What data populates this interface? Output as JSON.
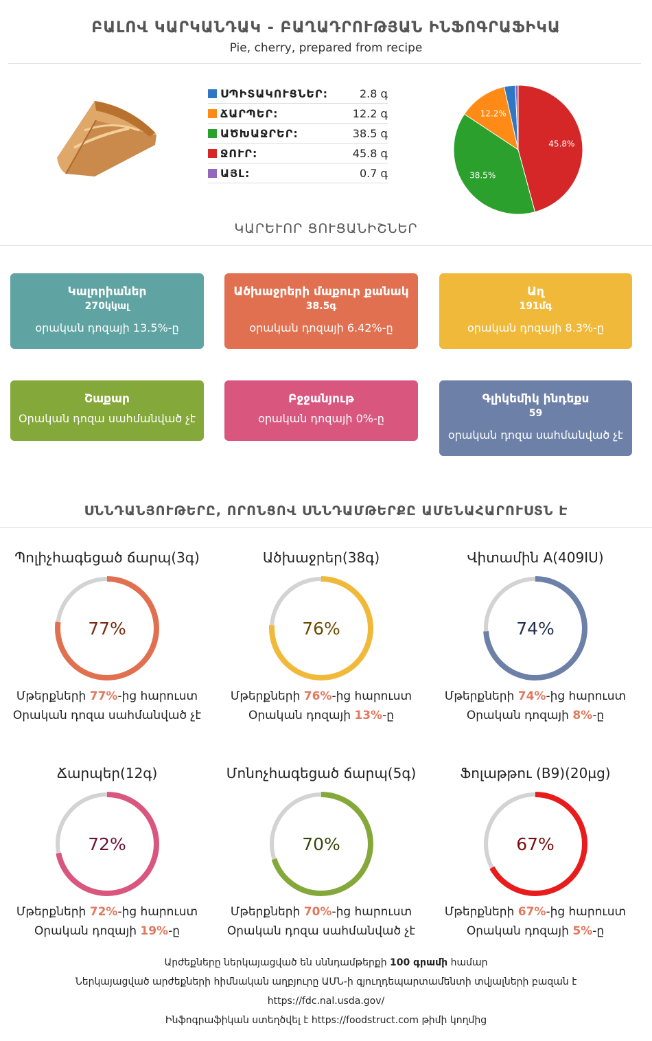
{
  "header": {
    "title": "ԲԱԼՈՎ ԿԱՐԿԱՆԴԱԿ - ԲԱՂԱԴՐՈՒԹՅԱՆ ԻՆՖՈԳՐԱՖԻԿԱ",
    "subtitle": "Pie, cherry, prepared from recipe"
  },
  "macros": [
    {
      "label": "ՍՊԻՏԱԿՈՒՑՆԵՐ:",
      "value": "2.8 գ",
      "color": "#2f77c4"
    },
    {
      "label": "ՃԱՐՊԵՐ:",
      "value": "12.2 գ",
      "color": "#ff8a16"
    },
    {
      "label": "ԱԾԽԱՋՐԵՐ:",
      "value": "38.5 գ",
      "color": "#2ca02c"
    },
    {
      "label": "ՋՈՒՐ:",
      "value": "45.8 գ",
      "color": "#d62728"
    },
    {
      "label": "ԱՅԼ:",
      "value": "0.7 գ",
      "color": "#9467bd"
    }
  ],
  "chart_data": {
    "type": "pie",
    "categories": [
      "ՍՊԻՏԱԿՈՒՑՆԵՐ",
      "ՃԱՐՊԵՐ",
      "ԱԾԽԱՋՐԵՐ",
      "ՋՈՒՐ",
      "ԱՅԼ"
    ],
    "values": [
      2.8,
      12.2,
      38.5,
      45.8,
      0.7
    ],
    "colors": [
      "#2f77c4",
      "#ff8a16",
      "#2ca02c",
      "#d62728",
      "#9467bd"
    ],
    "order": [
      3,
      2,
      1,
      0,
      4
    ],
    "labels": [
      "45.8%",
      "38.5%",
      "12.2%"
    ]
  },
  "sections": {
    "key_facts": "ԿԱՐԵՒՈՐ ՑՈՒՑԱՆԻՇՆԵՐ",
    "nutrients": "ՍՆՆԴԱՆՅՈՒԹԵՐԸ, ՈՐՈՆՑՈՎ ՍՆՆԴԱՄԹԵՐՔԸ ԱՄԵՆԱՀԱՐՈՒՍՏՆ Է"
  },
  "cards": [
    {
      "title": "Կալորիաներ",
      "value": "270կկալ",
      "sub": "օրական դոզայի 13.5%-ը",
      "color": "#5fa3a3"
    },
    {
      "title": "Ածխաջրերի մաքուր քանակ",
      "value": "38.5գ",
      "sub": "օրական դոզայի 6.42%-ը",
      "color": "#e07050"
    },
    {
      "title": "Աղ",
      "value": "191մգ",
      "sub": "օրական դոզայի 8.3%-ը",
      "color": "#f0b93a"
    },
    {
      "title": "Շաքար",
      "value": "",
      "sub": "Օրական դոզա սահմանված չէ",
      "color": "#85a83a"
    },
    {
      "title": "Բջջանյութ",
      "value": "",
      "sub": "օրական դոզայի 0%-ը",
      "color": "#d9577f"
    },
    {
      "title": "Գլիկեմիկ ինդեքս",
      "value": "59",
      "sub": "օրական դոզա սահմանված չէ",
      "color": "#6c80a8"
    }
  ],
  "rings": [
    {
      "title": "Պոլիչհագեցած ճարպ(3գ)",
      "percent": 77,
      "pct_label": "77%",
      "color": "#e07050",
      "text_color": "#7a2a10",
      "line1_pre": "Մթերքների ",
      "line1_hl": "77%",
      "line1_post": "-ից հարուստ",
      "line2_pre": "Օրական դոզա սահմանված չէ",
      "line2_hl": "",
      "line2_post": ""
    },
    {
      "title": "Ածխաջրեր(38գ)",
      "percent": 76,
      "pct_label": "76%",
      "color": "#f0b93a",
      "text_color": "#6b4a00",
      "line1_pre": "Մթերքների ",
      "line1_hl": "76%",
      "line1_post": "-ից հարուստ",
      "line2_pre": "Օրական դոզայի ",
      "line2_hl": "13%",
      "line2_post": "-ը"
    },
    {
      "title": "Վիտամին A(409IU)",
      "percent": 74,
      "pct_label": "74%",
      "color": "#6c80a8",
      "text_color": "#22304d",
      "line1_pre": "Մթերքների ",
      "line1_hl": "74%",
      "line1_post": "-ից հարուստ",
      "line2_pre": "Օրական դոզայի ",
      "line2_hl": "8%",
      "line2_post": "-ը"
    },
    {
      "title": "Ճարպեր(12գ)",
      "percent": 72,
      "pct_label": "72%",
      "color": "#d9577f",
      "text_color": "#6e1233",
      "line1_pre": "Մթերքների ",
      "line1_hl": "72%",
      "line1_post": "-ից հարուստ",
      "line2_pre": "Օրական դոզայի ",
      "line2_hl": "19%",
      "line2_post": "-ը"
    },
    {
      "title": "Մոնոչհագեցած ճարպ(5գ)",
      "percent": 70,
      "pct_label": "70%",
      "color": "#85a83a",
      "text_color": "#34470b",
      "line1_pre": "Մթերքների ",
      "line1_hl": "70%",
      "line1_post": "-ից հարուստ",
      "line2_pre": "Օրական դոզա սահմանված չէ",
      "line2_hl": "",
      "line2_post": ""
    },
    {
      "title": "Ֆոլաթթու (B9)(20µg)",
      "percent": 67,
      "pct_label": "67%",
      "color": "#e81c1c",
      "text_color": "#7a0c0c",
      "line1_pre": "Մթերքների ",
      "line1_hl": "67%",
      "line1_post": "-ից հարուստ",
      "line2_pre": "Օրական դոզայի ",
      "line2_hl": "5%",
      "line2_post": "-ը"
    }
  ],
  "footer": {
    "line1_pre": "Արժեքները ներկայացված են սննդամթերքի ",
    "line1_bold": "100 գրամի",
    "line1_post": " համար",
    "line2": "Ներկայացված արժեքների հիմնական աղբյուրը ԱՄՆ-ի գյուղդեպարտամենտի տվյալների բազան է",
    "line3": "https://fdc.nal.usda.gov/",
    "line4_pre": "Ինֆոգրաֆիկան ստեղծվել է ",
    "line4_link": "https://foodstruct.com",
    "line4_post": " թիմի կողմից"
  }
}
